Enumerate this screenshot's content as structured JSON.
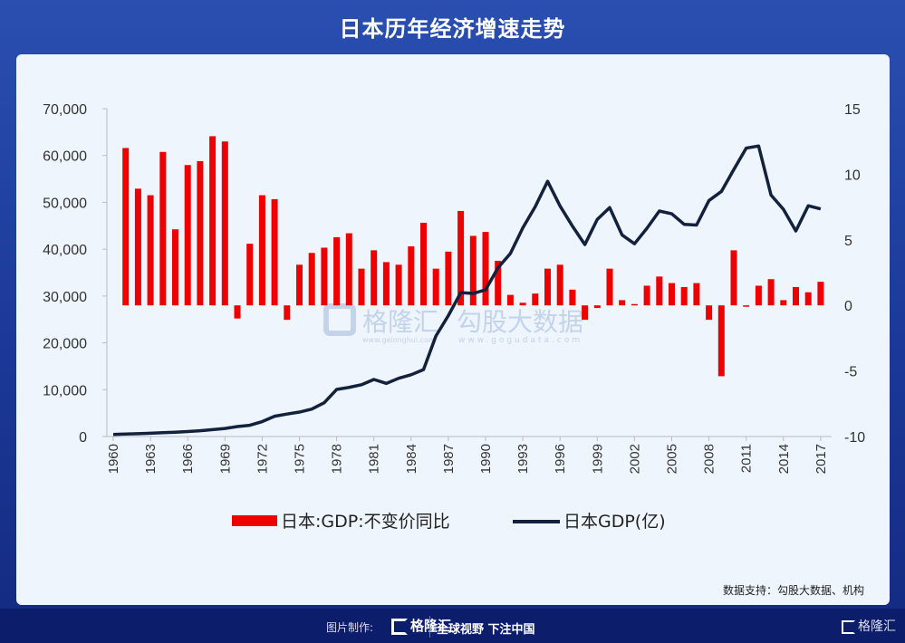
{
  "title": "日本历年经济增速走势",
  "source": "数据支持：勾股大数据、机构",
  "watermark": {
    "brand1": "格隆汇",
    "url1": "www.gelonghui.com",
    "brand2": "勾股大数据",
    "url2": "www.gogudata.com"
  },
  "footer": {
    "label": "图片制作:",
    "logo": "格隆汇",
    "slogan": "全球视野 下注中国",
    "logo_right": "格隆汇"
  },
  "colors": {
    "bar": "#ee0000",
    "line": "#14213d",
    "panel": "#eef5fd",
    "background": "#1c3a9a"
  },
  "chart_data": {
    "type": "bar+line",
    "x": [
      1960,
      1961,
      1962,
      1963,
      1964,
      1965,
      1966,
      1967,
      1968,
      1969,
      1970,
      1971,
      1972,
      1973,
      1974,
      1975,
      1976,
      1977,
      1978,
      1979,
      1980,
      1981,
      1982,
      1983,
      1984,
      1985,
      1986,
      1987,
      1988,
      1989,
      1990,
      1991,
      1992,
      1993,
      1994,
      1995,
      1996,
      1997,
      1998,
      1999,
      2000,
      2001,
      2002,
      2003,
      2004,
      2005,
      2006,
      2007,
      2008,
      2009,
      2010,
      2011,
      2012,
      2013,
      2014,
      2015,
      2016,
      2017
    ],
    "xticks": [
      "1960",
      "1963",
      "1966",
      "1969",
      "1972",
      "1975",
      "1978",
      "1981",
      "1984",
      "1987",
      "1990",
      "1993",
      "1996",
      "1999",
      "2002",
      "2005",
      "2008",
      "2011",
      "2014",
      "2017"
    ],
    "left_axis": {
      "ylim": [
        0,
        70000
      ],
      "ticks": [
        "0",
        "10,000",
        "20,000",
        "30,000",
        "40,000",
        "50,000",
        "60,000",
        "70,000"
      ]
    },
    "right_axis": {
      "ylim": [
        -10,
        15
      ],
      "ticks": [
        "-10",
        "-5",
        "0",
        "5",
        "10",
        "15"
      ]
    },
    "legend_position": "bottom",
    "series": [
      {
        "name": "日本:GDP:不变价同比",
        "type": "bar",
        "axis": "right",
        "values": [
          null,
          12.0,
          8.9,
          8.4,
          11.7,
          5.8,
          10.7,
          11.0,
          12.9,
          12.5,
          -1.0,
          4.7,
          8.4,
          8.1,
          -1.1,
          3.1,
          4.0,
          4.4,
          5.2,
          5.5,
          2.8,
          4.2,
          3.3,
          3.1,
          4.5,
          6.3,
          2.8,
          4.1,
          7.2,
          5.3,
          5.6,
          3.4,
          0.8,
          0.2,
          0.9,
          2.8,
          3.1,
          1.2,
          -1.1,
          -0.2,
          2.8,
          0.4,
          0.1,
          1.5,
          2.2,
          1.7,
          1.4,
          1.7,
          -1.1,
          -5.4,
          4.2,
          -0.1,
          1.5,
          2.0,
          0.4,
          1.4,
          1.0,
          1.8
        ]
      },
      {
        "name": "日本GDP(亿)",
        "type": "line",
        "axis": "left",
        "values": [
          443,
          537,
          608,
          698,
          818,
          911,
          1058,
          1238,
          1466,
          1720,
          2127,
          2400,
          3185,
          4326,
          4796,
          5217,
          5861,
          7213,
          10054,
          10486,
          11054,
          12182,
          11346,
          12435,
          13186,
          14275,
          21464,
          25812,
          30718,
          30547,
          31327,
          36012,
          39088,
          44544,
          49070,
          54491,
          49230,
          44922,
          40980,
          46355,
          48875,
          43035,
          41152,
          44457,
          48151,
          47554,
          45303,
          45152,
          50379,
          52313,
          57001,
          61575,
          62032,
          51557,
          48504,
          43895,
          49266,
          48598
        ]
      }
    ]
  }
}
